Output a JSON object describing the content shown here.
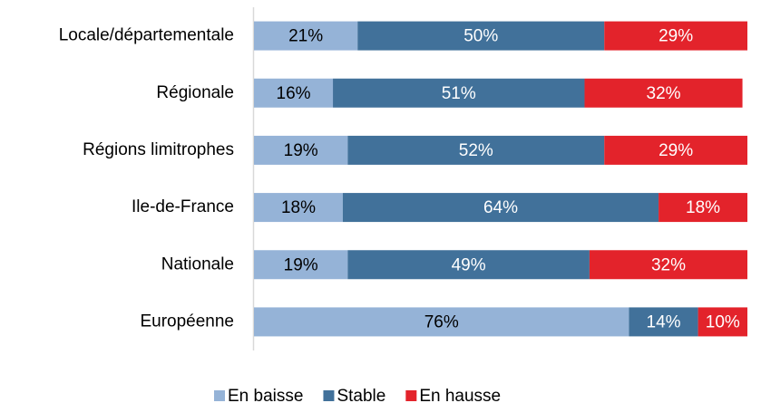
{
  "chart_data": {
    "type": "stacked-barh",
    "categories": [
      "Locale/départementale",
      "Régionale",
      "Régions limitrophes",
      "Ile-de-France",
      "Nationale",
      "Européenne"
    ],
    "series": [
      {
        "name": "En baisse",
        "color": "#95b3d7",
        "label_color": "#000000",
        "values": [
          21,
          16,
          19,
          18,
          19,
          76
        ],
        "value_labels": [
          "21%",
          "16%",
          "19%",
          "18%",
          "19%",
          "76%"
        ]
      },
      {
        "name": "Stable",
        "color": "#41719a",
        "label_color": "#ffffff",
        "values": [
          50,
          51,
          52,
          64,
          49,
          14
        ],
        "value_labels": [
          "50%",
          "51%",
          "52%",
          "64%",
          "49%",
          "14%"
        ]
      },
      {
        "name": "En hausse",
        "color": "#e3232b",
        "label_color": "#ffffff",
        "values": [
          29,
          32,
          29,
          18,
          32,
          10
        ],
        "value_labels": [
          "29%",
          "32%",
          "29%",
          "18%",
          "32%",
          "10%"
        ]
      }
    ],
    "xlim": [
      0,
      100
    ],
    "legend": "bottom"
  }
}
